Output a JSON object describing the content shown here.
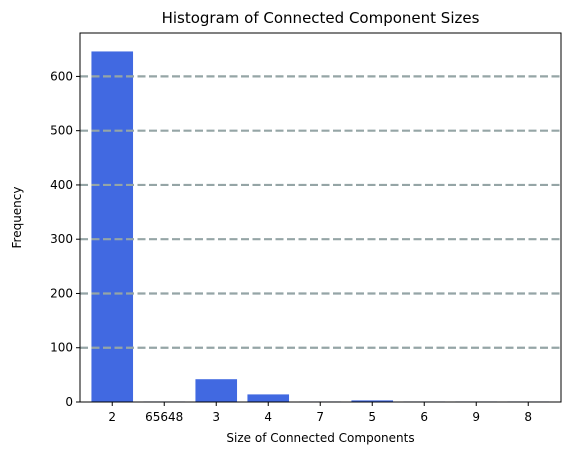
{
  "chart_data": {
    "type": "bar",
    "title": "Histogram of Connected Component Sizes",
    "xlabel": "Size of Connected Components",
    "ylabel": "Frequency",
    "categories": [
      "2",
      "65648",
      "3",
      "4",
      "7",
      "5",
      "6",
      "9",
      "8"
    ],
    "values": [
      646,
      1,
      42,
      14,
      1,
      3,
      1,
      1,
      1
    ],
    "ylim": [
      0,
      680
    ],
    "yticks": [
      0,
      100,
      200,
      300,
      400,
      500,
      600
    ],
    "grid": "horizontal dashed",
    "colors": {
      "bar": "#4169e1",
      "grid": "#95a5a6",
      "axis": "#000000"
    }
  }
}
